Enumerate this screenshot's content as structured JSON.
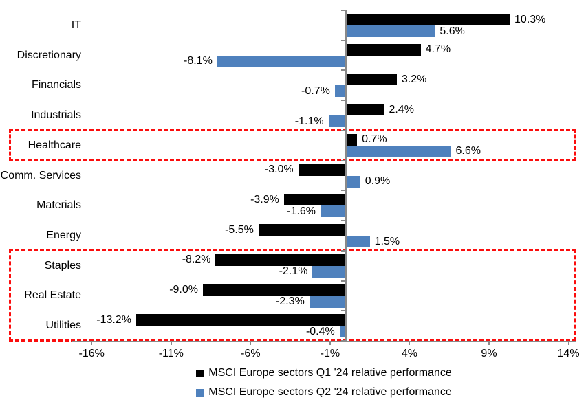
{
  "chart_data": {
    "type": "bar",
    "orientation": "horizontal",
    "title": "",
    "xlabel": "",
    "ylabel": "",
    "grid": false,
    "legend_position": "bottom-center",
    "categories": [
      "IT",
      "Discretionary",
      "Financials",
      "Industrials",
      "Healthcare",
      "Comm. Services",
      "Materials",
      "Energy",
      "Staples",
      "Real Estate",
      "Utilities"
    ],
    "series": [
      {
        "name": "MSCI Europe sectors Q1 '24 relative performance",
        "color": "#000000",
        "values": [
          10.3,
          4.7,
          3.2,
          2.4,
          0.7,
          -3.0,
          -3.9,
          -5.5,
          -8.2,
          -9.0,
          -13.2
        ],
        "labels": [
          "10.3%",
          "4.7%",
          "3.2%",
          "2.4%",
          "0.7%",
          "-3.0%",
          "-3.9%",
          "-5.5%",
          "-8.2%",
          "-9.0%",
          "-13.2%"
        ]
      },
      {
        "name": "MSCI Europe sectors Q2 '24 relative performance",
        "color": "#4F81BD",
        "values": [
          5.6,
          -8.1,
          -0.7,
          -1.1,
          6.6,
          0.9,
          -1.6,
          1.5,
          -2.1,
          -2.3,
          -0.4
        ],
        "labels": [
          "5.6%",
          "-8.1%",
          "-0.7%",
          "-1.1%",
          "6.6%",
          "0.9%",
          "-1.6%",
          "1.5%",
          "-2.1%",
          "-2.3%",
          "-0.4%"
        ]
      }
    ],
    "x_axis": {
      "min": -17,
      "max": 14.5,
      "ticks": [
        {
          "value": -16,
          "label": "-16%"
        },
        {
          "value": -11,
          "label": "-11%"
        },
        {
          "value": -6,
          "label": "-6%"
        },
        {
          "value": -1,
          "label": "-1%"
        },
        {
          "value": 4,
          "label": "4%"
        },
        {
          "value": 9,
          "label": "9%"
        },
        {
          "value": 14,
          "label": "14%"
        }
      ]
    },
    "highlights": [
      {
        "name": "healthcare-highlight-box",
        "start_row": 4,
        "end_row": 4,
        "color": "#fb0d0d"
      },
      {
        "name": "defensives-highlight-box",
        "start_row": 8,
        "end_row": 10,
        "color": "#fb0d0d"
      }
    ]
  }
}
